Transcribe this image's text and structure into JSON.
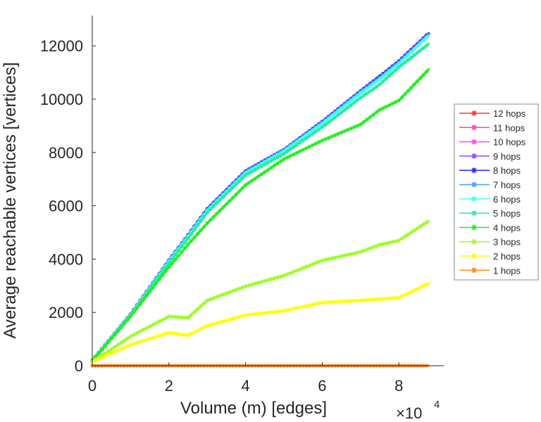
{
  "chart_data": {
    "type": "line",
    "title": "",
    "xlabel": "Volume (m) [edges]",
    "ylabel": "Average reachable vertices [vertices]",
    "x_multiplier": "×10",
    "x_multiplier_exp": "4",
    "xlim": [
      0,
      9.17
    ],
    "ylim": [
      0,
      13100
    ],
    "xticks": [
      0,
      2,
      4,
      6,
      8
    ],
    "xtick_labels": [
      "0",
      "2",
      "4",
      "6",
      "8"
    ],
    "yticks": [
      0,
      2000,
      4000,
      6000,
      8000,
      10000,
      12000
    ],
    "ytick_labels": [
      "0",
      "2000",
      "4000",
      "6000",
      "8000",
      "10000",
      "12000"
    ],
    "grid": false,
    "legend_position": "right-outside",
    "x": [
      0,
      1,
      2,
      2.5,
      3,
      4,
      5,
      6,
      7,
      7.5,
      8,
      8.8
    ],
    "series": [
      {
        "name": "12 hops",
        "color": "#ff3333",
        "values": [
          200,
          1930,
          3950,
          4900,
          5880,
          7300,
          8100,
          9150,
          10300,
          10850,
          11420,
          12500
        ]
      },
      {
        "name": "11 hops",
        "color": "#ff4499",
        "values": [
          200,
          1930,
          3950,
          4900,
          5880,
          7300,
          8100,
          9150,
          10300,
          10850,
          11420,
          12500
        ]
      },
      {
        "name": "10 hops",
        "color": "#ff44ff",
        "values": [
          200,
          1930,
          3950,
          4900,
          5880,
          7300,
          8100,
          9150,
          10300,
          10850,
          11420,
          12500
        ]
      },
      {
        "name": "9 hops",
        "color": "#9944ff",
        "values": [
          200,
          1930,
          3950,
          4900,
          5880,
          7300,
          8100,
          9150,
          10300,
          10850,
          11420,
          12500
        ]
      },
      {
        "name": "8 hops",
        "color": "#2222ff",
        "values": [
          200,
          1930,
          3950,
          4900,
          5880,
          7300,
          8100,
          9150,
          10300,
          10850,
          11420,
          12480
        ]
      },
      {
        "name": "7 hops",
        "color": "#44a0ff",
        "values": [
          200,
          1920,
          3930,
          4880,
          5850,
          7270,
          8080,
          9120,
          10270,
          10800,
          11380,
          12450
        ]
      },
      {
        "name": "6 hops",
        "color": "#44ffff",
        "values": [
          200,
          1910,
          3910,
          4850,
          5820,
          7230,
          8050,
          9080,
          10220,
          10750,
          11330,
          12420
        ]
      },
      {
        "name": "5 hops",
        "color": "#22ee99",
        "values": [
          200,
          1880,
          3850,
          4780,
          5750,
          7150,
          7950,
          8950,
          10050,
          10550,
          11200,
          12100
        ]
      },
      {
        "name": "4 hops",
        "color": "#22ee22",
        "values": [
          180,
          1850,
          3700,
          4550,
          5350,
          6780,
          7750,
          8450,
          9050,
          9600,
          9950,
          11150
        ]
      },
      {
        "name": "3 hops",
        "color": "#99ff22",
        "values": [
          150,
          1100,
          1850,
          1800,
          2450,
          2980,
          3380,
          3950,
          4270,
          4540,
          4700,
          5450
        ]
      },
      {
        "name": "2 hops",
        "color": "#ffff00",
        "values": [
          150,
          790,
          1240,
          1140,
          1500,
          1900,
          2060,
          2370,
          2450,
          2500,
          2550,
          3100
        ]
      },
      {
        "name": "1 hops",
        "color": "#ff8822",
        "values": [
          0,
          0,
          0,
          0,
          0,
          0,
          0,
          0,
          0,
          0,
          0,
          0
        ]
      }
    ]
  }
}
